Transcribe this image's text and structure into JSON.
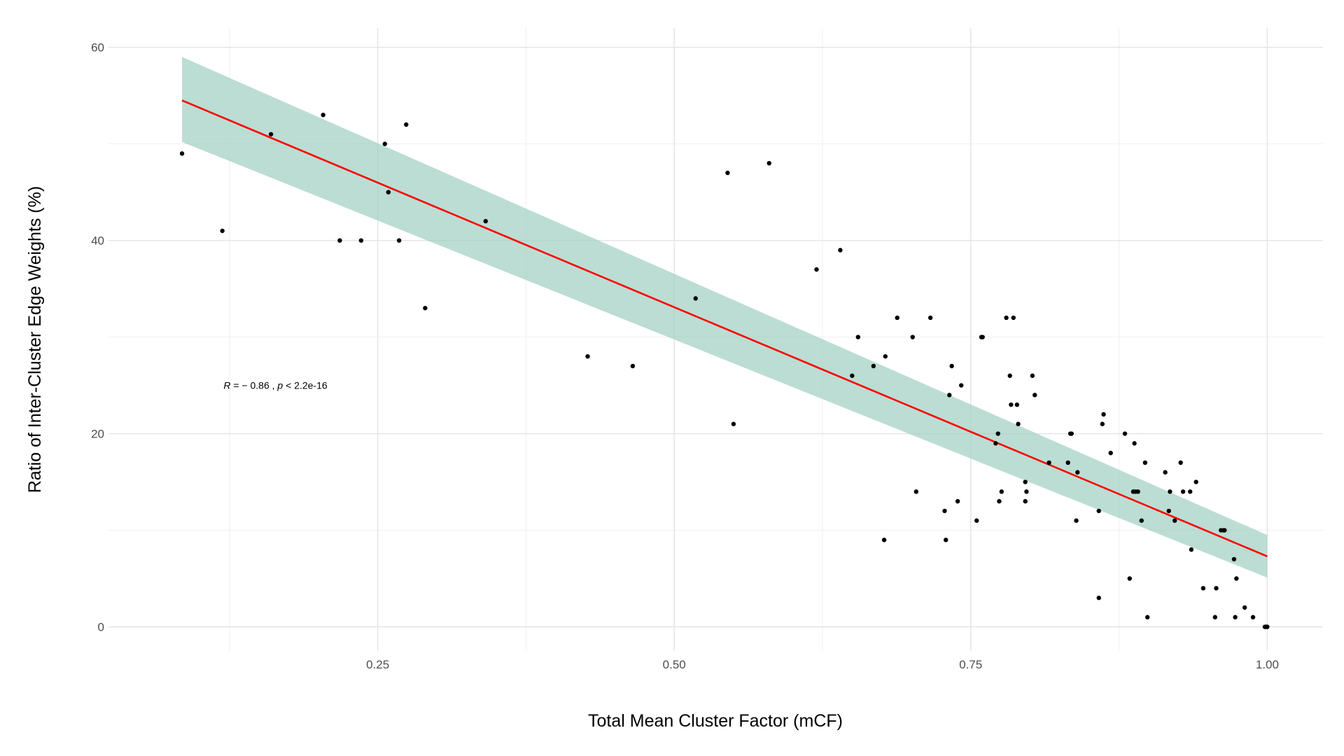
{
  "chart_data": {
    "type": "scatter",
    "title": "",
    "xlabel": "Total Mean Cluster Factor (mCF)",
    "ylabel": "Ratio of Inter-Cluster Edge Weights (%)",
    "xlim": [
      0.023,
      1.047
    ],
    "ylim": [
      -2.5,
      62
    ],
    "x_ticks": [
      0.25,
      0.5,
      0.75,
      1.0
    ],
    "x_tick_labels": [
      "0.25",
      "0.50",
      "0.75",
      "1.00"
    ],
    "y_ticks": [
      0,
      20,
      40,
      60
    ],
    "y_tick_labels": [
      "0",
      "20",
      "40",
      "60"
    ],
    "grid": true,
    "annotation": {
      "R_label": "R",
      "R_value": " = − 0.86 , ",
      "p_label": "p",
      "p_value": " < 2.2e-16",
      "x": 0.12,
      "y": 25
    },
    "regression": {
      "x": [
        0.085,
        1.0
      ],
      "y": [
        54.5,
        7.3
      ],
      "ci_upper": [
        59.0,
        9.5
      ],
      "ci_lower": [
        50.2,
        5.1
      ],
      "line_color": "#ff0000",
      "band_color": "#9fcfc0"
    },
    "point_color": "#000000",
    "points": [
      {
        "x": 0.085,
        "y": 49
      },
      {
        "x": 0.119,
        "y": 41
      },
      {
        "x": 0.16,
        "y": 51
      },
      {
        "x": 0.204,
        "y": 53
      },
      {
        "x": 0.218,
        "y": 40
      },
      {
        "x": 0.236,
        "y": 40
      },
      {
        "x": 0.256,
        "y": 50
      },
      {
        "x": 0.259,
        "y": 45
      },
      {
        "x": 0.268,
        "y": 40
      },
      {
        "x": 0.274,
        "y": 52
      },
      {
        "x": 0.29,
        "y": 33
      },
      {
        "x": 0.341,
        "y": 42
      },
      {
        "x": 0.427,
        "y": 28
      },
      {
        "x": 0.465,
        "y": 27
      },
      {
        "x": 0.518,
        "y": 34
      },
      {
        "x": 0.545,
        "y": 47
      },
      {
        "x": 0.55,
        "y": 21
      },
      {
        "x": 0.58,
        "y": 48
      },
      {
        "x": 0.62,
        "y": 37
      },
      {
        "x": 0.64,
        "y": 39
      },
      {
        "x": 0.65,
        "y": 26
      },
      {
        "x": 0.655,
        "y": 30
      },
      {
        "x": 0.668,
        "y": 27
      },
      {
        "x": 0.677,
        "y": 9
      },
      {
        "x": 0.678,
        "y": 28
      },
      {
        "x": 0.688,
        "y": 32
      },
      {
        "x": 0.701,
        "y": 30
      },
      {
        "x": 0.704,
        "y": 14
      },
      {
        "x": 0.716,
        "y": 32
      },
      {
        "x": 0.728,
        "y": 12
      },
      {
        "x": 0.729,
        "y": 9
      },
      {
        "x": 0.732,
        "y": 24
      },
      {
        "x": 0.734,
        "y": 27
      },
      {
        "x": 0.739,
        "y": 13
      },
      {
        "x": 0.742,
        "y": 25
      },
      {
        "x": 0.755,
        "y": 11
      },
      {
        "x": 0.759,
        "y": 30
      },
      {
        "x": 0.76,
        "y": 30
      },
      {
        "x": 0.771,
        "y": 19
      },
      {
        "x": 0.773,
        "y": 20
      },
      {
        "x": 0.774,
        "y": 13
      },
      {
        "x": 0.776,
        "y": 14
      },
      {
        "x": 0.78,
        "y": 32
      },
      {
        "x": 0.783,
        "y": 26
      },
      {
        "x": 0.784,
        "y": 23
      },
      {
        "x": 0.786,
        "y": 32
      },
      {
        "x": 0.789,
        "y": 23
      },
      {
        "x": 0.79,
        "y": 21
      },
      {
        "x": 0.796,
        "y": 13
      },
      {
        "x": 0.796,
        "y": 15
      },
      {
        "x": 0.797,
        "y": 14
      },
      {
        "x": 0.802,
        "y": 26
      },
      {
        "x": 0.804,
        "y": 24
      },
      {
        "x": 0.816,
        "y": 17
      },
      {
        "x": 0.832,
        "y": 17
      },
      {
        "x": 0.834,
        "y": 20
      },
      {
        "x": 0.835,
        "y": 20
      },
      {
        "x": 0.839,
        "y": 11
      },
      {
        "x": 0.84,
        "y": 16
      },
      {
        "x": 0.858,
        "y": 12
      },
      {
        "x": 0.858,
        "y": 3
      },
      {
        "x": 0.861,
        "y": 21
      },
      {
        "x": 0.862,
        "y": 22
      },
      {
        "x": 0.868,
        "y": 18
      },
      {
        "x": 0.88,
        "y": 20
      },
      {
        "x": 0.884,
        "y": 5
      },
      {
        "x": 0.887,
        "y": 14
      },
      {
        "x": 0.888,
        "y": 19
      },
      {
        "x": 0.889,
        "y": 14
      },
      {
        "x": 0.891,
        "y": 14
      },
      {
        "x": 0.894,
        "y": 11
      },
      {
        "x": 0.897,
        "y": 17
      },
      {
        "x": 0.899,
        "y": 1
      },
      {
        "x": 0.914,
        "y": 16
      },
      {
        "x": 0.917,
        "y": 12
      },
      {
        "x": 0.918,
        "y": 14
      },
      {
        "x": 0.922,
        "y": 11
      },
      {
        "x": 0.927,
        "y": 17
      },
      {
        "x": 0.929,
        "y": 14
      },
      {
        "x": 0.935,
        "y": 14
      },
      {
        "x": 0.936,
        "y": 8
      },
      {
        "x": 0.94,
        "y": 15
      },
      {
        "x": 0.946,
        "y": 4
      },
      {
        "x": 0.956,
        "y": 1
      },
      {
        "x": 0.957,
        "y": 4
      },
      {
        "x": 0.961,
        "y": 10
      },
      {
        "x": 0.963,
        "y": 10
      },
      {
        "x": 0.964,
        "y": 10
      },
      {
        "x": 0.972,
        "y": 7
      },
      {
        "x": 0.973,
        "y": 1
      },
      {
        "x": 0.974,
        "y": 5
      },
      {
        "x": 0.981,
        "y": 2
      },
      {
        "x": 0.988,
        "y": 1
      },
      {
        "x": 0.998,
        "y": 0
      },
      {
        "x": 0.999,
        "y": 0
      },
      {
        "x": 1.0,
        "y": 0
      }
    ]
  }
}
